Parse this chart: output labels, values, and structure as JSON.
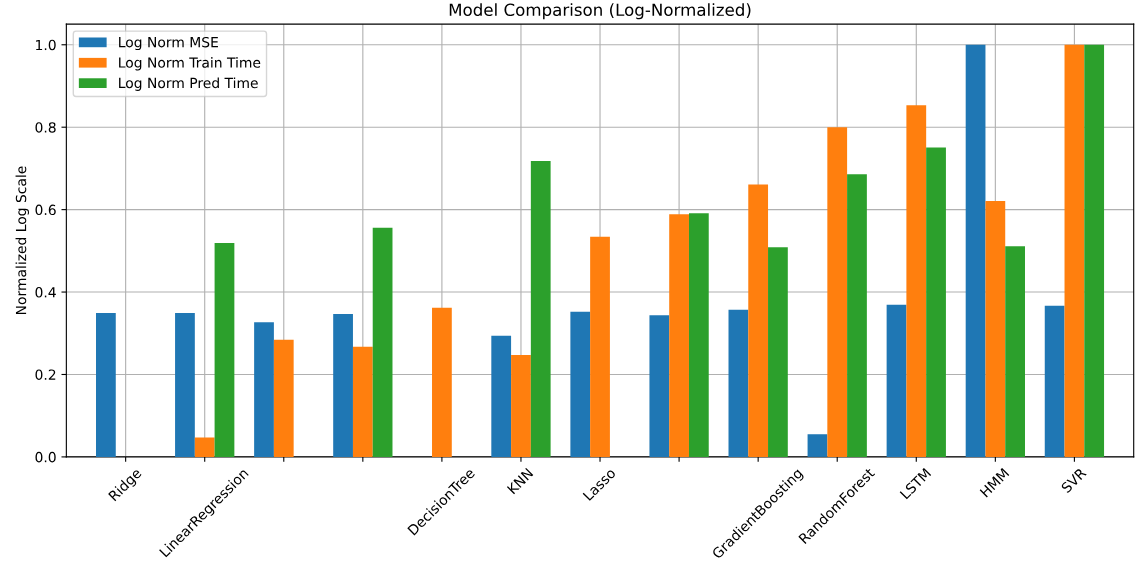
{
  "chart_data": {
    "type": "bar",
    "title": "Model Comparison (Log-Normalized)",
    "ylabel": "Normalized Log Scale",
    "categories": [
      "Ridge",
      "LinearRegression",
      null,
      null,
      "DecisionTree",
      "KNN",
      "Lasso",
      null,
      "GradientBoosting",
      "RandomForest",
      "LSTM",
      "HMM",
      "SVR"
    ],
    "series": [
      {
        "name": "Log Norm MSE",
        "color": "#1f77b4",
        "values": [
          0.349,
          0.349,
          0.327,
          0.347,
          0.0,
          0.294,
          0.352,
          0.344,
          0.357,
          0.055,
          0.369,
          1.0,
          0.367
        ]
      },
      {
        "name": "Log Norm Train Time",
        "color": "#ff7f0e",
        "values": [
          0.0,
          0.047,
          0.284,
          0.267,
          0.362,
          0.247,
          0.534,
          0.589,
          0.661,
          0.8,
          0.853,
          0.621,
          1.0
        ]
      },
      {
        "name": "Log Norm Pred Time",
        "color": "#2ca02c",
        "values": [
          0.0,
          0.519,
          0.0,
          0.556,
          0.0,
          0.718,
          0.0,
          0.591,
          0.509,
          0.686,
          0.751,
          0.511,
          1.0
        ]
      }
    ],
    "ylim": [
      0,
      1.05
    ],
    "yticks": [
      {
        "value": 0,
        "label": "0.0"
      },
      {
        "value": 0.2,
        "label": "0.2"
      },
      {
        "value": 0.4,
        "label": "0.4"
      },
      {
        "value": 0.6,
        "label": "0.6"
      },
      {
        "value": 0.8,
        "label": "0.8"
      },
      {
        "value": 1.0,
        "label": "1.0"
      }
    ],
    "grid": true,
    "legend": "top left"
  }
}
